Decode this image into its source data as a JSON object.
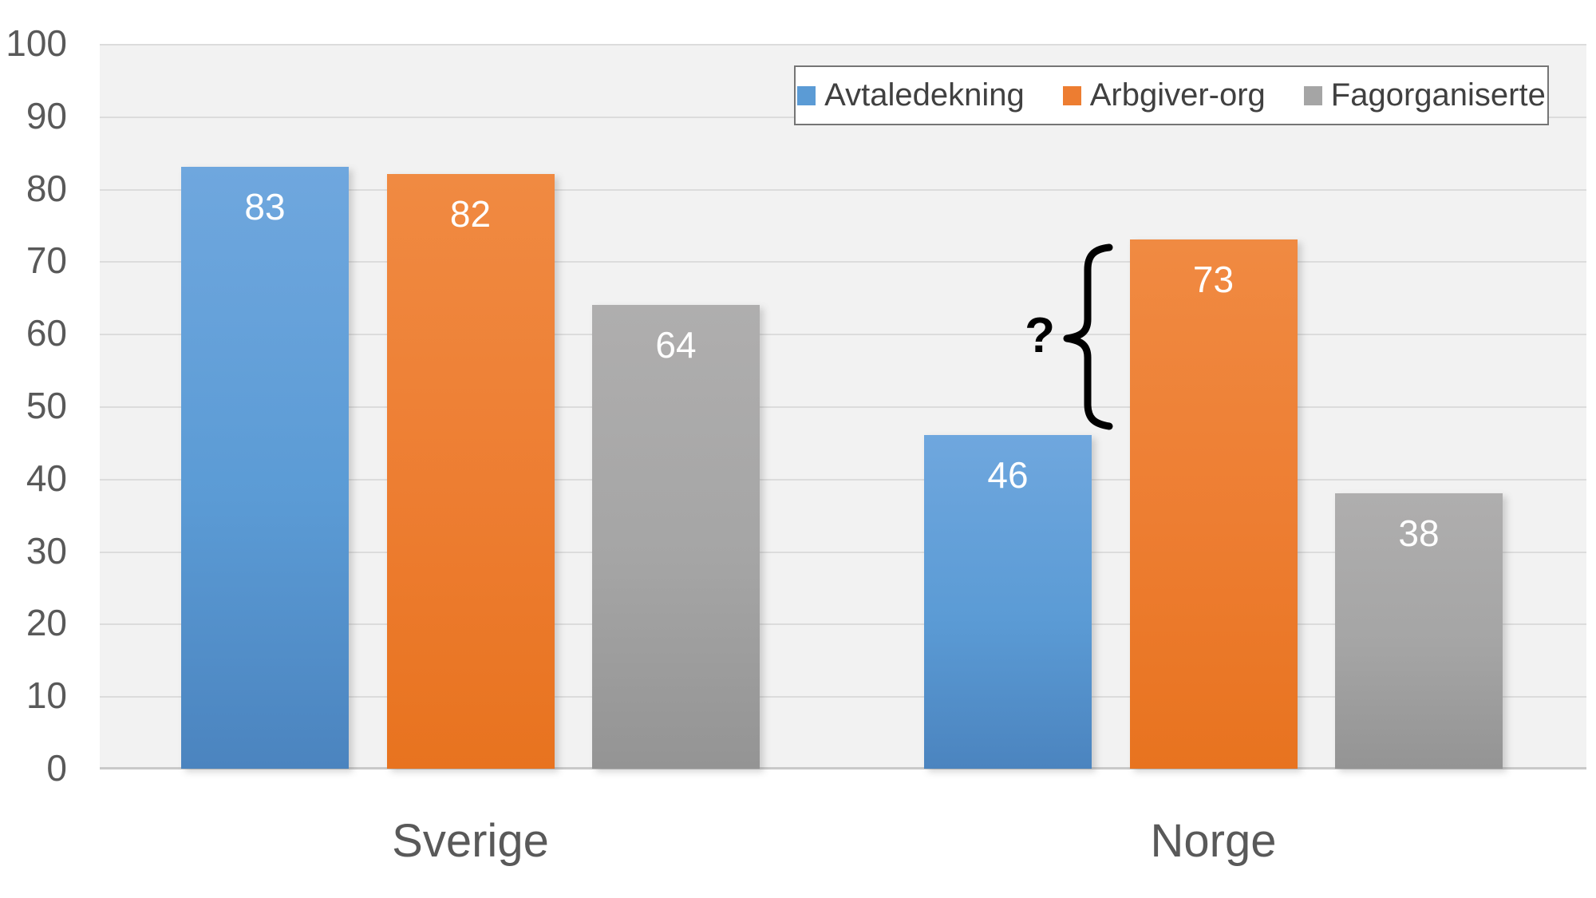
{
  "chart_data": {
    "type": "bar",
    "title": "",
    "categories": [
      "Sverige",
      "Norge"
    ],
    "series": [
      {
        "name": "Avtaledekning",
        "color": "#5B9BD5",
        "gradient_top": "#6FA7DE",
        "gradient_bottom": "#4B84BF",
        "values": [
          83,
          46
        ]
      },
      {
        "name": "Arbgiver-org",
        "color": "#ED7D31",
        "gradient_top": "#F08A42",
        "gradient_bottom": "#E8731F",
        "values": [
          82,
          73
        ]
      },
      {
        "name": "Fagorganiserte",
        "color": "#A5A5A5",
        "gradient_top": "#AFAEAE",
        "gradient_bottom": "#949494",
        "values": [
          64,
          38
        ]
      }
    ],
    "xlabel": "",
    "ylabel": "",
    "ylim": [
      0,
      100
    ],
    "yticks": [
      100,
      90,
      80,
      70,
      60,
      50,
      40,
      30,
      20,
      10,
      0
    ],
    "grid": true,
    "legend_position": "top-right",
    "value_labels_shown": true,
    "annotation": {
      "text": "?"
    },
    "style": {
      "plot_background": "#F2F2F2",
      "gridline_color": "#DCDCDC",
      "baseline_color": "#C9C9C9",
      "axis_label_color": "#595959",
      "legend_text_color": "#404040",
      "legend_border_color": "#757575",
      "value_label_color": "#FFFFFF",
      "annotation_color": "#000000"
    }
  }
}
